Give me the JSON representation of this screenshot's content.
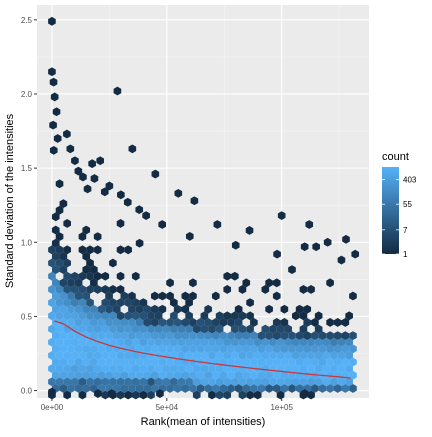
{
  "chart_data": {
    "type": "hexbin",
    "xlabel": "Rank(mean of intensities)",
    "ylabel": "Standard deviation of the intensities",
    "xlim": [
      -6500,
      138000
    ],
    "ylim": [
      -0.05,
      2.6
    ],
    "x_ticks": [
      {
        "value": 0,
        "label": "0e+00"
      },
      {
        "value": 50000,
        "label": "5e+04"
      },
      {
        "value": 100000,
        "label": "1e+05"
      }
    ],
    "y_ticks": [
      {
        "value": 0.0,
        "label": "0.0"
      },
      {
        "value": 0.5,
        "label": "0.5"
      },
      {
        "value": 1.0,
        "label": "1.0"
      },
      {
        "value": 1.5,
        "label": "1.5"
      },
      {
        "value": 2.0,
        "label": "2.0"
      },
      {
        "value": 2.5,
        "label": "2.5"
      }
    ],
    "grid": true,
    "legend": {
      "title": "count",
      "placement": "right",
      "scale": "log",
      "breaks": [
        {
          "value": 403,
          "label": "403"
        },
        {
          "value": 55,
          "label": "55"
        },
        {
          "value": 7,
          "label": "7"
        },
        {
          "value": 1,
          "label": "1"
        }
      ],
      "range": [
        1,
        1100
      ],
      "color_low": "#132B43",
      "color_high": "#56B1F7"
    },
    "colors": {
      "panel": "#EBEBEB",
      "grid_major": "#FFFFFF",
      "trend_line": "#C8383C"
    },
    "density_profile": {
      "x": [
        0,
        10000,
        20000,
        30000,
        40000,
        50000,
        60000,
        70000,
        80000,
        90000,
        100000,
        110000,
        120000,
        131000
      ],
      "core_low": [
        0.08,
        0.1,
        0.09,
        0.08,
        0.07,
        0.06,
        0.06,
        0.05,
        0.05,
        0.04,
        0.04,
        0.04,
        0.03,
        0.03
      ],
      "core_high": [
        0.78,
        0.62,
        0.55,
        0.5,
        0.46,
        0.43,
        0.42,
        0.4,
        0.38,
        0.37,
        0.36,
        0.35,
        0.34,
        0.33
      ],
      "envelope_high": [
        1.38,
        1.05,
        0.92,
        0.84,
        0.79,
        0.74,
        0.72,
        0.69,
        0.66,
        0.64,
        0.62,
        0.6,
        0.58,
        0.55
      ]
    },
    "outliers": [
      {
        "x": 0,
        "y": 2.49
      },
      {
        "x": 0,
        "y": 2.15
      },
      {
        "x": 700,
        "y": 2.08
      },
      {
        "x": 1200,
        "y": 1.98
      },
      {
        "x": 2000,
        "y": 1.88
      },
      {
        "x": 500,
        "y": 1.79
      },
      {
        "x": 2500,
        "y": 1.7
      },
      {
        "x": 800,
        "y": 1.62
      },
      {
        "x": 6500,
        "y": 1.73
      },
      {
        "x": 8000,
        "y": 1.63
      },
      {
        "x": 10000,
        "y": 1.55
      },
      {
        "x": 11500,
        "y": 1.48
      },
      {
        "x": 13500,
        "y": 1.44
      },
      {
        "x": 15500,
        "y": 1.36
      },
      {
        "x": 17500,
        "y": 1.53
      },
      {
        "x": 18500,
        "y": 1.43
      },
      {
        "x": 21000,
        "y": 1.55
      },
      {
        "x": 23000,
        "y": 1.34
      },
      {
        "x": 25000,
        "y": 1.38
      },
      {
        "x": 28500,
        "y": 2.02
      },
      {
        "x": 30000,
        "y": 1.32
      },
      {
        "x": 33000,
        "y": 1.27
      },
      {
        "x": 35000,
        "y": 1.63
      },
      {
        "x": 38000,
        "y": 1.22
      },
      {
        "x": 41000,
        "y": 1.18
      },
      {
        "x": 45000,
        "y": 1.46
      },
      {
        "x": 48000,
        "y": 1.12
      },
      {
        "x": 55000,
        "y": 1.33
      },
      {
        "x": 60000,
        "y": 1.04
      },
      {
        "x": 62000,
        "y": 1.28
      },
      {
        "x": 72000,
        "y": 1.12
      },
      {
        "x": 80000,
        "y": 0.98
      },
      {
        "x": 86000,
        "y": 1.08
      },
      {
        "x": 98000,
        "y": 0.92
      },
      {
        "x": 100000,
        "y": 1.18
      },
      {
        "x": 110000,
        "y": 0.97
      },
      {
        "x": 112000,
        "y": 1.12
      },
      {
        "x": 115000,
        "y": 0.97
      },
      {
        "x": 120000,
        "y": 1.0
      },
      {
        "x": 126000,
        "y": 0.88
      },
      {
        "x": 128000,
        "y": 1.02
      },
      {
        "x": 132000,
        "y": 0.92
      },
      {
        "x": 0,
        "y": -0.01
      },
      {
        "x": 20000,
        "y": -0.02
      },
      {
        "x": 26000,
        "y": -0.02
      },
      {
        "x": 47000,
        "y": -0.02
      },
      {
        "x": 110000,
        "y": -0.02
      }
    ],
    "trend": {
      "x": [
        1000,
        5000,
        10000,
        15000,
        20000,
        25000,
        30000,
        35000,
        40000,
        45000,
        50000,
        55000,
        60000,
        65000,
        70000,
        75000,
        80000,
        85000,
        90000,
        95000,
        100000,
        105000,
        110000,
        115000,
        120000,
        125000,
        130000
      ],
      "y": [
        0.47,
        0.45,
        0.4,
        0.36,
        0.33,
        0.305,
        0.285,
        0.268,
        0.252,
        0.238,
        0.226,
        0.214,
        0.203,
        0.192,
        0.182,
        0.172,
        0.163,
        0.154,
        0.145,
        0.137,
        0.129,
        0.121,
        0.113,
        0.106,
        0.099,
        0.092,
        0.085
      ]
    }
  }
}
